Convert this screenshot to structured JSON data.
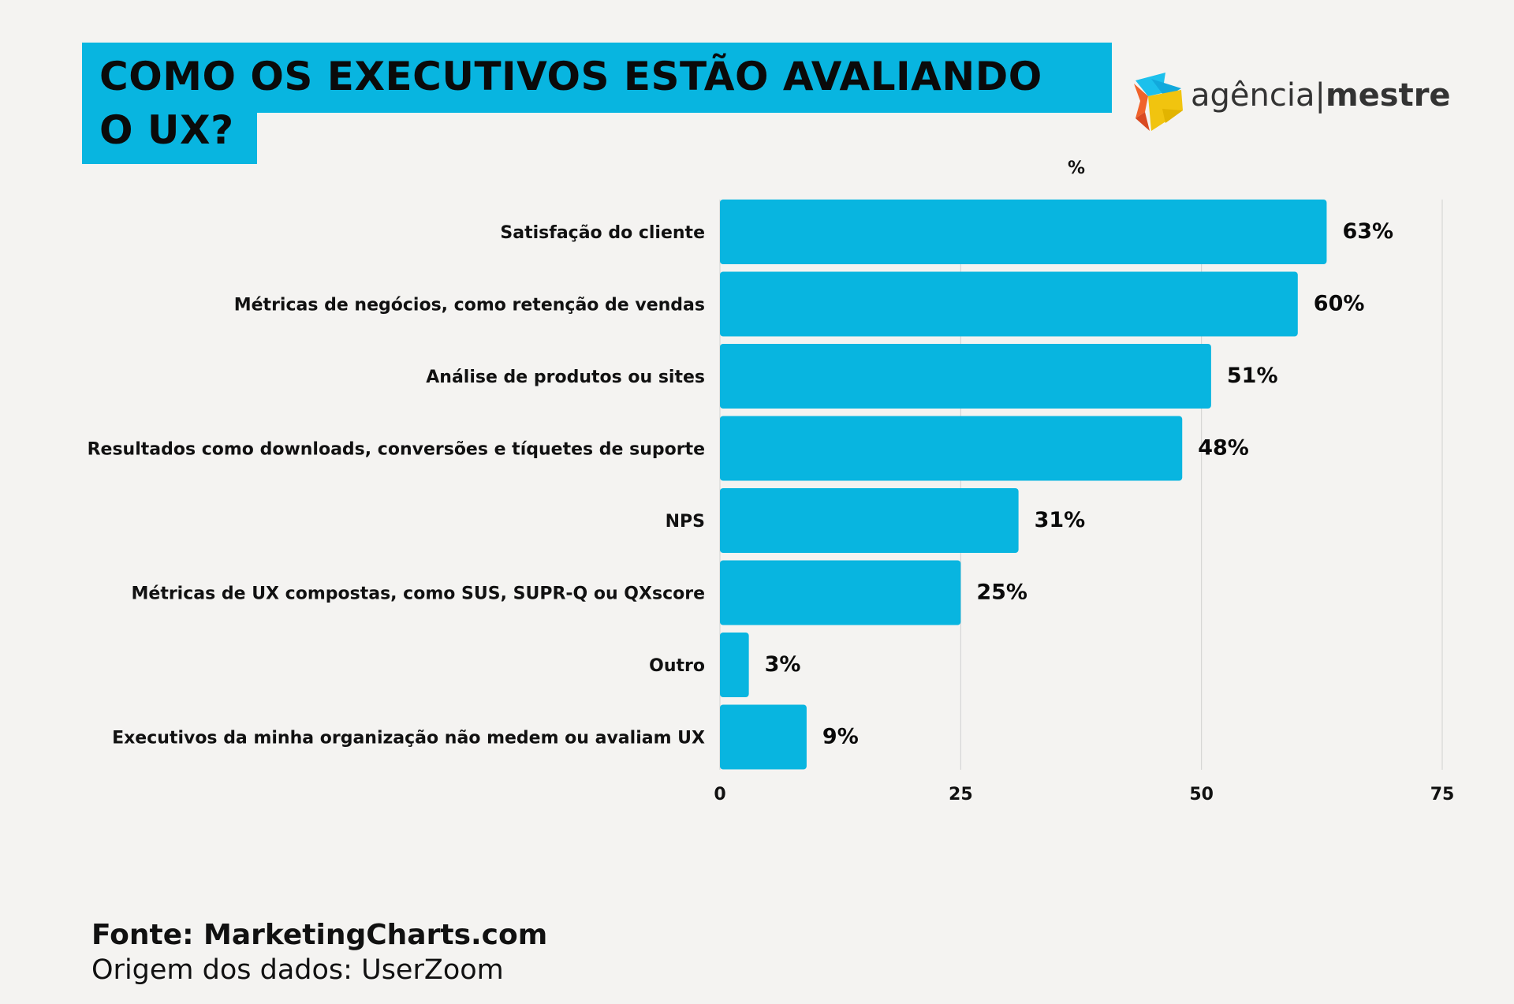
{
  "title": {
    "line1": "COMO OS EXECUTIVOS ESTÃO AVALIANDO",
    "line2": "O UX?"
  },
  "logo": {
    "part1": "agência",
    "separator": "|",
    "part2": "mestre"
  },
  "colors": {
    "bar": "#08b5e0",
    "title_bg": "#08b5e0",
    "grid": "#d0d0d0"
  },
  "chart_data": {
    "type": "bar",
    "orientation": "horizontal",
    "unit_label": "%",
    "categories": [
      "Satisfação do cliente",
      "Métricas de negócios, como retenção de vendas",
      "Análise de produtos ou sites",
      "Resultados como downloads, conversões e tíquetes de suporte",
      "NPS",
      "Métricas de UX compostas, como SUS, SUPR-Q ou QXscore",
      "Outro",
      "Executivos da minha organização não medem ou avaliam UX"
    ],
    "values": [
      63,
      60,
      51,
      48,
      31,
      25,
      3,
      9
    ],
    "data_labels": [
      "63%",
      "60%",
      "51%",
      "48%",
      "31%",
      "25%",
      "3%",
      "9%"
    ],
    "xlim": [
      0,
      75
    ],
    "xticks": [
      "0",
      "25",
      "50",
      "75"
    ],
    "grid": true
  },
  "footer": {
    "source": "Fonte: MarketingCharts.com",
    "origin": "Origem dos dados: UserZoom"
  }
}
